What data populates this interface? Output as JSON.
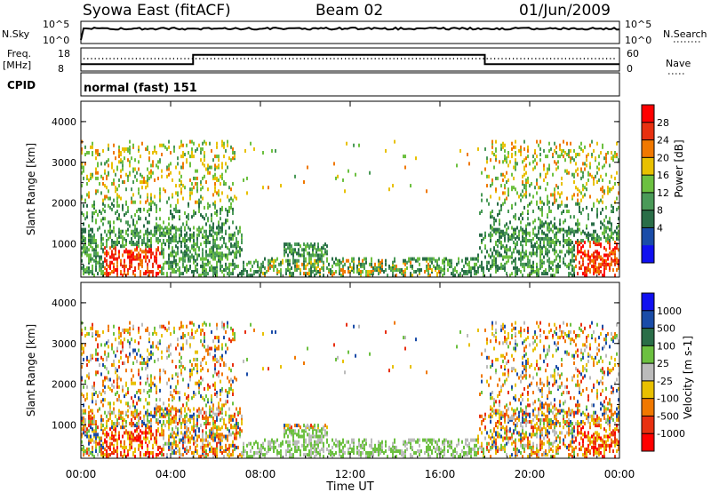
{
  "header": {
    "radar": "Syowa East (fitACF)",
    "beam": "Beam 02",
    "date": "01/Jun/2009"
  },
  "labels": {
    "nsky": "N.Sky",
    "nsearch": "N.Search",
    "freq_line1": "Freq.",
    "freq_line2": "[MHz]",
    "nave": "Nave",
    "cpid": "CPID",
    "cpid_value": "normal (fast) 151",
    "nsky_ticks": [
      "10^5",
      "10^0"
    ],
    "freq_ticks": [
      "18",
      "8"
    ],
    "nave_ticks": [
      "60",
      "0"
    ]
  },
  "colors": {
    "power": [
      "#1010f0",
      "#1a4ca8",
      "#2a6e48",
      "#4a9a58",
      "#6cc040",
      "#e8c000",
      "#f07800",
      "#e83010",
      "#ff0000"
    ],
    "velocity": [
      "#1010f0",
      "#1a4ca8",
      "#2a6e48",
      "#6cc040",
      "#bbbbbb",
      "#e8c000",
      "#f07800",
      "#e83010",
      "#ff0000"
    ]
  },
  "chart_data": [
    {
      "type": "heatmap",
      "name": "power",
      "xlabel": "",
      "ylabel": "Slant Range [km]",
      "xlim": [
        0,
        24
      ],
      "ylim": [
        180,
        4500
      ],
      "yticks": [
        1000,
        2000,
        3000,
        4000
      ],
      "colorbar": {
        "label": "Power [dB]",
        "ticks": [
          "4",
          "8",
          "12",
          "16",
          "20",
          "24",
          "28"
        ],
        "range": [
          0,
          32
        ]
      }
    },
    {
      "type": "heatmap",
      "name": "velocity",
      "xlabel": "Time UT",
      "ylabel": "Slant Range [km]",
      "xlim": [
        0,
        24
      ],
      "ylim": [
        180,
        4500
      ],
      "xticks": [
        "00:00",
        "04:00",
        "08:00",
        "12:00",
        "16:00",
        "20:00",
        "00:00"
      ],
      "yticks": [
        1000,
        2000,
        3000,
        4000
      ],
      "colorbar": {
        "label": "Velocity [m s-1]",
        "ticks": [
          "1000",
          "500",
          "100",
          "25",
          "-25",
          "-100",
          "-500",
          "-1000"
        ]
      }
    },
    {
      "type": "line",
      "name": "frequency",
      "xlim": [
        0,
        24
      ],
      "ylim": [
        8,
        18
      ],
      "x": [
        0,
        5,
        5,
        18,
        18,
        24
      ],
      "y": [
        11,
        11,
        15,
        15,
        11,
        11
      ]
    }
  ]
}
